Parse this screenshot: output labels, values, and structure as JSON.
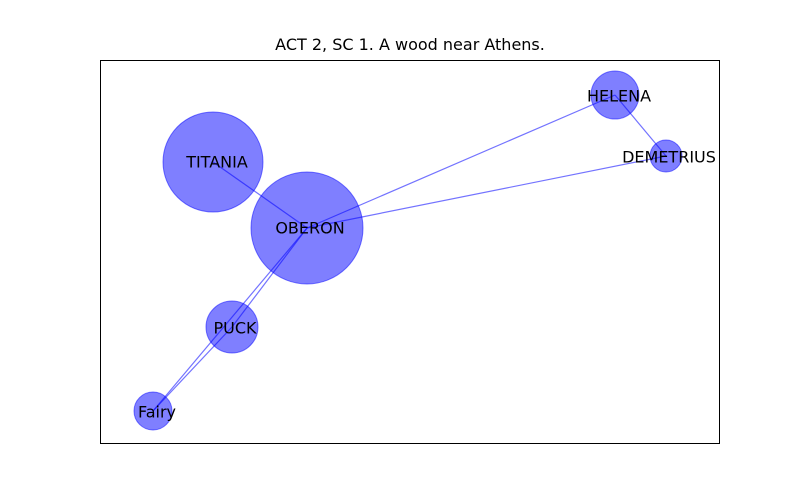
{
  "figure": {
    "title": "ACT 2, SC 1. A wood near Athens."
  },
  "style": {
    "node_color": "#0000ff",
    "node_opacity": 0.5,
    "edge_color": "#0000ff",
    "edge_opacity": 0.55
  },
  "chart_data": {
    "type": "network",
    "title": "ACT 2, SC 1. A wood near Athens.",
    "nodes": [
      {
        "id": "OBERON",
        "label": "OBERON",
        "size": 56
      },
      {
        "id": "TITANIA",
        "label": "TITANIA",
        "size": 50
      },
      {
        "id": "HELENA",
        "label": "HELENA",
        "size": 24
      },
      {
        "id": "DEMETRIUS",
        "label": "DEMETRIUS",
        "size": 16
      },
      {
        "id": "PUCK",
        "label": "PUCK",
        "size": 26
      },
      {
        "id": "Fairy",
        "label": "Fairy",
        "size": 19
      }
    ],
    "edges": [
      {
        "source": "OBERON",
        "target": "TITANIA"
      },
      {
        "source": "OBERON",
        "target": "HELENA"
      },
      {
        "source": "OBERON",
        "target": "DEMETRIUS"
      },
      {
        "source": "OBERON",
        "target": "PUCK"
      },
      {
        "source": "OBERON",
        "target": "Fairy"
      },
      {
        "source": "HELENA",
        "target": "DEMETRIUS"
      },
      {
        "source": "PUCK",
        "target": "Fairy"
      }
    ]
  }
}
